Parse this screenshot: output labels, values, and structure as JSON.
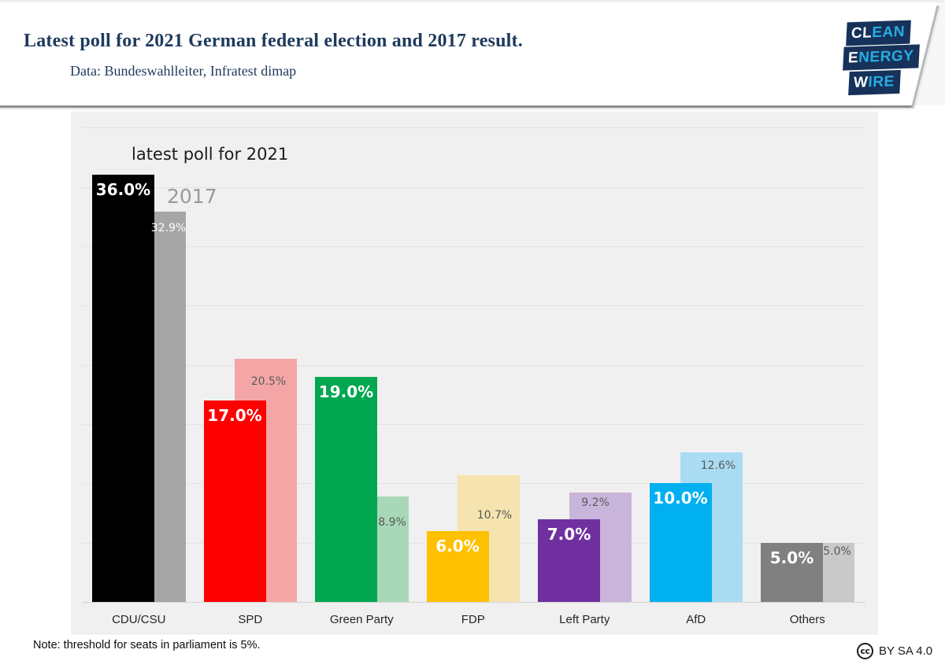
{
  "header": {
    "title": "Latest poll for 2021 German federal election and 2017 result.",
    "subtitle": "Data: Bundeswahlleiter, Infratest dimap",
    "logo": {
      "lines": [
        {
          "white": "CL",
          "cyan": "EAN"
        },
        {
          "white": "E",
          "cyan": "NERGY"
        },
        {
          "white": "W",
          "cyan": "IRE"
        }
      ],
      "navy": "#16325a",
      "cyan": "#29abe2"
    }
  },
  "chart_data": {
    "type": "bar",
    "title": "",
    "categories": [
      "CDU/CSU",
      "SPD",
      "Green Party",
      "FDP",
      "Left Party",
      "AfD",
      "Others"
    ],
    "series": [
      {
        "name": "latest poll for 2021",
        "values": [
          36.0,
          17.0,
          19.0,
          6.0,
          7.0,
          10.0,
          5.0
        ],
        "labels": [
          "36.0%",
          "17.0%",
          "19.0%",
          "6.0%",
          "7.0%",
          "10.0%",
          "5.0%"
        ],
        "colors": [
          "#000000",
          "#fe0000",
          "#00a650",
          "#ffc000",
          "#7030a0",
          "#00b0f0",
          "#808080"
        ],
        "label_colors": [
          "#ffffff",
          "#ffffff",
          "#ffffff",
          "#ffffff",
          "#ffffff",
          "#ffffff",
          "#ffffff"
        ]
      },
      {
        "name": "2017",
        "values": [
          32.9,
          20.5,
          8.9,
          10.7,
          9.2,
          12.6,
          5.0
        ],
        "labels": [
          "32.9%",
          "20.5%",
          "8.9%",
          "10.7%",
          "9.2%",
          "12.6%",
          "5.0%"
        ],
        "colors": [
          "#a6a6a6",
          "#f4a6a6",
          "#a8d8b8",
          "#f5e4b0",
          "#c9b5dc",
          "#a9dcf2",
          "#c9c9c9"
        ],
        "label_colors": [
          "#ffffff",
          "#595959",
          "#595959",
          "#595959",
          "#595959",
          "#595959",
          "#595959"
        ]
      }
    ],
    "ylabel": "",
    "xlabel": "",
    "ylim": [
      0,
      41
    ],
    "gridline_step": 5,
    "grid": true,
    "legend_position": "inside-top-left",
    "panel_background": "#f0f0f0"
  },
  "note": "Note: threshold for seats in parliament is 5%.",
  "license": {
    "icon": "cc",
    "text": "BY SA 4.0"
  }
}
